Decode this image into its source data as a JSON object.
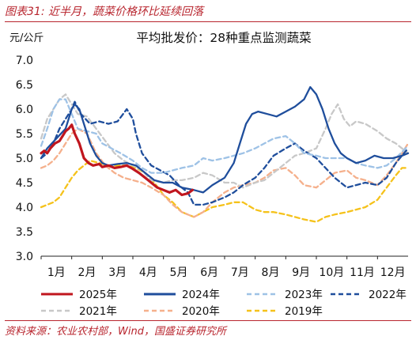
{
  "figure": {
    "title": "图表31:  近半月，蔬菜价格环比延续回落",
    "source": "资料来源：农业农村部，Wind，国盛证券研究所"
  },
  "chart_data": {
    "type": "line",
    "title": "平均批发价：28种重点监测蔬菜",
    "ylabel": "元/公斤",
    "ylim": [
      3.0,
      7.0
    ],
    "yticks": [
      "3.0",
      "3.5",
      "4.0",
      "4.5",
      "5.0",
      "5.5",
      "6.0",
      "6.5",
      "7.0"
    ],
    "xticks": [
      "1月",
      "2月",
      "3月",
      "4月",
      "5月",
      "6月",
      "7月",
      "8月",
      "9月",
      "10月",
      "11月",
      "12月"
    ],
    "xlim": [
      1,
      13
    ],
    "legend_position": "bottom",
    "grid": false,
    "series": [
      {
        "name": "2025年",
        "color": "#c0161e",
        "style": "solid",
        "width": 3.2,
        "x": [
          1.0,
          1.1,
          1.2,
          1.3,
          1.45,
          1.6,
          1.7,
          1.8,
          1.9,
          2.0,
          2.1,
          2.25,
          2.4,
          2.55,
          2.7,
          2.9,
          3.0,
          3.2,
          3.4,
          3.6,
          3.8,
          4.0,
          4.2,
          4.4,
          4.6,
          4.8,
          5.0,
          5.2,
          5.4,
          5.6,
          5.8,
          5.95
        ],
        "y": [
          5.1,
          5.15,
          5.1,
          5.2,
          5.3,
          5.35,
          5.45,
          5.55,
          5.6,
          5.68,
          5.5,
          5.3,
          5.0,
          4.9,
          4.85,
          4.88,
          4.82,
          4.85,
          4.8,
          4.82,
          4.85,
          4.78,
          4.7,
          4.6,
          4.5,
          4.4,
          4.35,
          4.3,
          4.35,
          4.25,
          4.28,
          4.35
        ]
      },
      {
        "name": "2024年",
        "color": "#1f4e9c",
        "style": "solid",
        "width": 2.3,
        "x": [
          1.0,
          1.2,
          1.5,
          1.8,
          2.0,
          2.1,
          2.25,
          2.4,
          2.6,
          2.8,
          3.0,
          3.2,
          3.5,
          3.8,
          4.1,
          4.4,
          4.7,
          5.0,
          5.3,
          5.6,
          6.0,
          6.3,
          6.6,
          7.0,
          7.3,
          7.5,
          7.7,
          7.9,
          8.1,
          8.4,
          8.7,
          9.0,
          9.3,
          9.6,
          9.8,
          10.0,
          10.2,
          10.4,
          10.6,
          10.8,
          11.0,
          11.3,
          11.6,
          11.9,
          12.2,
          12.5,
          12.8,
          13.0
        ],
        "y": [
          5.0,
          5.2,
          5.4,
          5.6,
          6.0,
          6.1,
          6.0,
          5.7,
          5.3,
          5.05,
          4.9,
          4.85,
          4.88,
          4.9,
          4.85,
          4.7,
          4.55,
          4.5,
          4.5,
          4.4,
          4.35,
          4.3,
          4.45,
          4.6,
          4.9,
          5.3,
          5.7,
          5.9,
          5.95,
          5.9,
          5.85,
          5.95,
          6.05,
          6.2,
          6.45,
          6.3,
          6.0,
          5.6,
          5.3,
          5.1,
          5.0,
          4.9,
          4.95,
          5.05,
          5.0,
          5.0,
          5.05,
          5.1
        ]
      },
      {
        "name": "2023年",
        "color": "#9ec2e6",
        "style": "dashed",
        "width": 2.3,
        "x": [
          1.0,
          1.2,
          1.4,
          1.6,
          1.8,
          2.0,
          2.2,
          2.5,
          2.8,
          3.0,
          3.3,
          3.6,
          4.0,
          4.3,
          4.6,
          5.0,
          5.3,
          5.6,
          6.0,
          6.3,
          6.6,
          7.0,
          7.3,
          7.6,
          8.0,
          8.3,
          8.6,
          9.0,
          9.3,
          9.6,
          10.0,
          10.3,
          10.6,
          11.0,
          11.3,
          11.6,
          12.0,
          12.3,
          12.6,
          13.0
        ],
        "y": [
          5.25,
          5.6,
          6.0,
          6.2,
          6.2,
          5.9,
          5.6,
          5.55,
          5.5,
          5.3,
          5.2,
          5.1,
          4.95,
          4.8,
          4.7,
          4.7,
          4.75,
          4.8,
          4.85,
          5.0,
          4.95,
          5.0,
          5.05,
          5.1,
          5.2,
          5.3,
          5.4,
          5.45,
          5.3,
          5.1,
          5.05,
          5.0,
          5.0,
          5.0,
          4.9,
          4.85,
          4.8,
          4.85,
          5.0,
          5.25
        ]
      },
      {
        "name": "2022年",
        "color": "#1f4e9c",
        "style": "dashed",
        "width": 2.3,
        "x": [
          1.0,
          1.2,
          1.4,
          1.6,
          1.8,
          2.0,
          2.1,
          2.3,
          2.6,
          2.9,
          3.2,
          3.5,
          3.8,
          4.0,
          4.1,
          4.3,
          4.6,
          4.9,
          5.2,
          5.5,
          5.8,
          6.0,
          6.3,
          6.6,
          7.0,
          7.3,
          7.6,
          8.0,
          8.3,
          8.6,
          9.0,
          9.3,
          9.6,
          10.0,
          10.3,
          10.6,
          11.0,
          11.3,
          11.6,
          12.0,
          12.3,
          12.6,
          13.0
        ],
        "y": [
          5.0,
          5.1,
          5.3,
          5.6,
          5.8,
          6.0,
          6.15,
          5.9,
          5.7,
          5.75,
          5.7,
          5.75,
          6.0,
          5.8,
          5.5,
          5.1,
          4.85,
          4.75,
          4.65,
          4.45,
          4.3,
          4.05,
          4.05,
          4.1,
          4.2,
          4.3,
          4.45,
          4.6,
          4.8,
          5.05,
          5.2,
          5.3,
          5.15,
          5.0,
          4.8,
          4.6,
          4.4,
          4.45,
          4.5,
          4.45,
          4.6,
          4.9,
          5.2
        ]
      },
      {
        "name": "2021年",
        "color": "#c8c8c8",
        "style": "dashed",
        "width": 2.3,
        "x": [
          1.0,
          1.2,
          1.4,
          1.6,
          1.8,
          2.0,
          2.2,
          2.5,
          2.8,
          3.1,
          3.4,
          3.7,
          4.0,
          4.3,
          4.6,
          5.0,
          5.3,
          5.6,
          6.0,
          6.3,
          6.6,
          7.0,
          7.3,
          7.6,
          8.0,
          8.3,
          8.6,
          9.0,
          9.3,
          9.6,
          10.0,
          10.3,
          10.5,
          10.7,
          10.9,
          11.1,
          11.3,
          11.6,
          12.0,
          12.3,
          12.6,
          13.0
        ],
        "y": [
          5.4,
          5.8,
          6.0,
          6.2,
          6.3,
          6.1,
          5.9,
          5.85,
          5.6,
          5.35,
          5.1,
          4.95,
          4.85,
          4.75,
          4.55,
          4.5,
          4.55,
          4.55,
          4.6,
          4.7,
          4.65,
          4.5,
          4.5,
          4.4,
          4.5,
          4.55,
          4.7,
          4.9,
          5.05,
          5.1,
          5.2,
          5.6,
          5.9,
          6.1,
          5.8,
          5.65,
          5.75,
          5.7,
          5.55,
          5.4,
          5.3,
          5.1
        ]
      },
      {
        "name": "2020年",
        "color": "#f5b08c",
        "style": "dashed",
        "width": 2.3,
        "x": [
          1.0,
          1.2,
          1.4,
          1.6,
          1.8,
          2.0,
          2.2,
          2.5,
          2.8,
          3.1,
          3.4,
          3.7,
          4.0,
          4.3,
          4.6,
          5.0,
          5.3,
          5.6,
          6.0,
          6.3,
          6.6,
          7.0,
          7.3,
          7.6,
          8.0,
          8.3,
          8.6,
          9.0,
          9.3,
          9.6,
          10.0,
          10.3,
          10.6,
          11.0,
          11.3,
          11.6,
          12.0,
          12.3,
          12.6,
          13.0
        ],
        "y": [
          4.8,
          4.85,
          4.95,
          5.1,
          5.3,
          5.5,
          5.6,
          5.5,
          5.1,
          4.85,
          4.7,
          4.6,
          4.55,
          4.5,
          4.4,
          4.25,
          4.05,
          3.9,
          3.8,
          3.9,
          4.1,
          4.3,
          4.4,
          4.45,
          4.5,
          4.6,
          4.75,
          4.8,
          4.65,
          4.45,
          4.4,
          4.55,
          4.7,
          4.75,
          4.6,
          4.55,
          4.45,
          4.65,
          4.9,
          5.3
        ]
      },
      {
        "name": "2019年",
        "color": "#f5c21b",
        "style": "dashed",
        "width": 2.3,
        "x": [
          1.0,
          1.2,
          1.4,
          1.6,
          1.8,
          2.0,
          2.2,
          2.4,
          2.6,
          2.9,
          3.2,
          3.5,
          3.8,
          4.1,
          4.4,
          4.7,
          5.0,
          5.3,
          5.6,
          6.0,
          6.3,
          6.6,
          7.0,
          7.3,
          7.6,
          8.0,
          8.3,
          8.6,
          9.0,
          9.3,
          9.6,
          10.0,
          10.3,
          10.6,
          11.0,
          11.3,
          11.6,
          12.0,
          12.3,
          12.6,
          12.8,
          13.0
        ],
        "y": [
          4.0,
          4.05,
          4.1,
          4.2,
          4.4,
          4.6,
          4.75,
          4.85,
          4.95,
          4.9,
          4.85,
          4.85,
          4.85,
          4.8,
          4.7,
          4.5,
          4.25,
          4.1,
          3.9,
          3.8,
          3.9,
          4.0,
          4.05,
          4.1,
          4.1,
          3.95,
          3.9,
          3.9,
          3.85,
          3.8,
          3.75,
          3.7,
          3.8,
          3.85,
          3.9,
          3.95,
          4.0,
          4.15,
          4.4,
          4.65,
          4.8,
          4.8
        ]
      }
    ]
  }
}
